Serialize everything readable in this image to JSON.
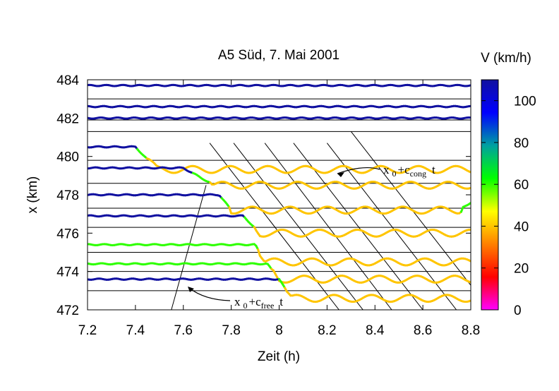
{
  "chart_data": {
    "type": "line",
    "title": "A5 Süd, 7. Mai 2001",
    "xlabel": "Zeit (h)",
    "ylabel": "x (km)",
    "xlim": [
      7.2,
      8.8
    ],
    "ylim": [
      472,
      484
    ],
    "xticks": [
      7.2,
      7.4,
      7.6,
      7.8,
      8,
      8.2,
      8.4,
      8.6,
      8.8
    ],
    "yticks": [
      472,
      474,
      476,
      478,
      480,
      482,
      484
    ],
    "colorbar": {
      "label": "V (km/h)",
      "range": [
        0,
        110
      ],
      "ticks": [
        0,
        20,
        40,
        60,
        80,
        100
      ],
      "colors": [
        "#ff00ff",
        "#ff0000",
        "#ff8000",
        "#ffff00",
        "#00ff00",
        "#00a0a0",
        "#0000ff",
        "#1010a0"
      ]
    },
    "detectors": [
      {
        "x0": 483.0,
        "profile": [
          [
            7.2,
            0.7
          ],
          [
            8.8,
            0.7
          ]
        ]
      },
      {
        "x0": 481.9,
        "profile": [
          [
            7.2,
            0.7
          ],
          [
            8.8,
            0.7
          ]
        ]
      },
      {
        "x0": 481.3,
        "profile": [
          [
            7.2,
            0.7
          ],
          [
            8.8,
            0.7
          ]
        ]
      },
      {
        "x0": 479.8,
        "profile": [
          [
            7.2,
            0.7
          ],
          [
            7.4,
            0.7
          ],
          [
            7.49,
            -0.48
          ],
          [
            8.8,
            -0.48
          ]
        ]
      },
      {
        "x0": 478.6,
        "profile": [
          [
            7.2,
            0.8
          ],
          [
            7.6,
            0.8
          ],
          [
            7.73,
            -0.1
          ],
          [
            8.8,
            -0.1
          ]
        ]
      },
      {
        "x0": 477.3,
        "profile": [
          [
            7.2,
            0.7
          ],
          [
            7.75,
            0.7
          ],
          [
            7.8,
            -0.1
          ],
          [
            8.75,
            -0.1
          ],
          [
            8.8,
            0.3
          ]
        ]
      },
      {
        "x0": 476.3,
        "profile": [
          [
            7.2,
            0.6
          ],
          [
            7.85,
            0.6
          ],
          [
            7.92,
            -0.3
          ],
          [
            8.8,
            -0.3
          ]
        ]
      },
      {
        "x0": 475.0,
        "profile": [
          [
            7.2,
            0.4
          ],
          [
            7.9,
            0.4
          ],
          [
            7.94,
            -0.5
          ],
          [
            8.8,
            -0.5
          ]
        ]
      },
      {
        "x0": 474.0,
        "profile": [
          [
            7.2,
            0.4
          ],
          [
            7.95,
            0.4
          ],
          [
            8.0,
            -0.4
          ],
          [
            8.8,
            -0.4
          ]
        ]
      },
      {
        "x0": 473.0,
        "profile": [
          [
            7.2,
            0.6
          ],
          [
            8.0,
            0.6
          ],
          [
            8.05,
            -0.4
          ],
          [
            8.8,
            -0.4
          ]
        ]
      }
    ],
    "free_line": {
      "label_main": "x",
      "label_sub0": "0",
      "label_plus": "+c",
      "label_sub": "free",
      "label_t": "t",
      "points": [
        [
          7.55,
          472.0
        ],
        [
          7.695,
          478.5
        ]
      ]
    },
    "cong_lines": {
      "label_main": "x",
      "label_sub0": "0",
      "label_plus": "+c",
      "label_sub": "cong",
      "label_t": "t",
      "points": [
        [
          [
            7.71,
            480.7
          ],
          [
            8.25,
            472.0
          ]
        ],
        [
          [
            7.81,
            480.7
          ],
          [
            8.35,
            472.0
          ]
        ],
        [
          [
            7.94,
            480.7
          ],
          [
            8.47,
            472.0
          ]
        ],
        [
          [
            8.06,
            480.7
          ],
          [
            8.6,
            472.0
          ]
        ],
        [
          [
            8.2,
            480.7
          ],
          [
            8.74,
            472.0
          ]
        ],
        [
          [
            8.3,
            481.3
          ],
          [
            8.88,
            472.0
          ]
        ]
      ]
    }
  }
}
